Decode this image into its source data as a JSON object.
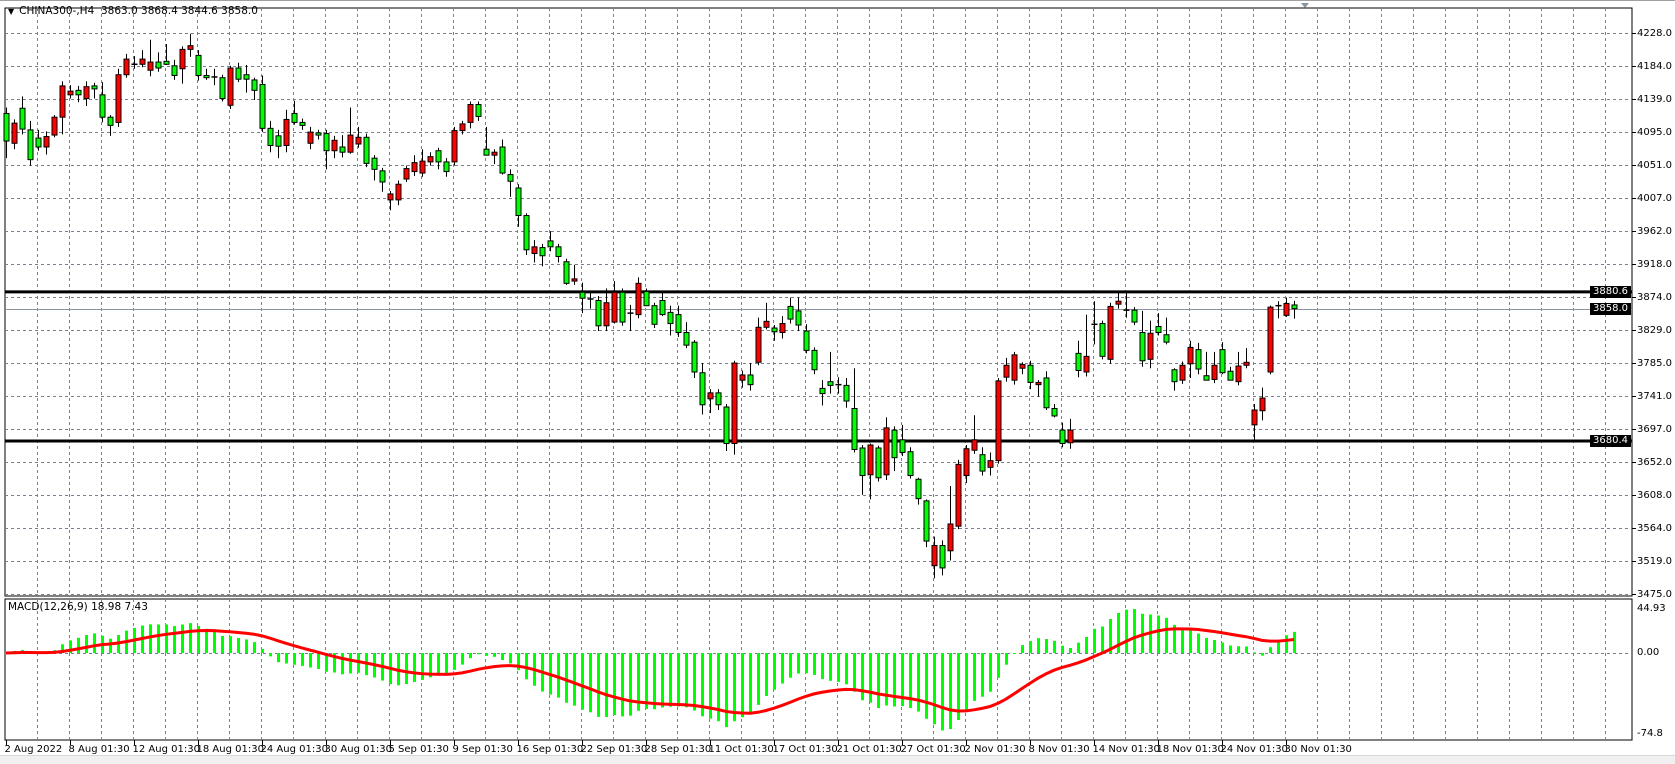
{
  "header": {
    "menu_icon": "triangle-down-icon",
    "symbol": "CHINA300-,H4",
    "ohlc": "3863.0 3868.4 3844.6 3858.0"
  },
  "macd_label": {
    "name": "MACD(12,26,9)",
    "values": "18.98 7.43"
  },
  "colors": {
    "bull_body": "#ff0000",
    "bear_body": "#00ff00",
    "candle_outline": "#000000",
    "grid": "#76808e",
    "macd_histogram": "#00ff00",
    "signal_line": "#ff0000",
    "level_line": "#000000",
    "bid_line": "#8a949e"
  },
  "chart_data": [
    {
      "type": "candlestick",
      "symbol": "CHINA300-",
      "timeframe": "H4",
      "ylim": [
        3475.0,
        4228.0
      ],
      "y_ticks": [
        "4228.0",
        "4184.0",
        "4139.0",
        "4095.0",
        "4051.0",
        "4007.0",
        "3962.0",
        "3918.0",
        "3874.0",
        "3829.0",
        "3785.0",
        "3741.0",
        "3697.0",
        "3652.0",
        "3608.0",
        "3564.0",
        "3519.0",
        "3475.0"
      ],
      "x_ticks": [
        "2 Aug 2022",
        "8 Aug 01:30",
        "12 Aug 01:30",
        "18 Aug 01:30",
        "24 Aug 01:30",
        "30 Aug 01:30",
        "5 Sep 01:30",
        "9 Sep 01:30",
        "16 Sep 01:30",
        "22 Sep 01:30",
        "28 Sep 01:30",
        "11 Oct 01:30",
        "17 Oct 01:30",
        "21 Oct 01:30",
        "27 Oct 01:30",
        "2 Nov 01:30",
        "8 Nov 01:30",
        "14 Nov 01:30",
        "18 Nov 01:30",
        "24 Nov 01:30",
        "30 Nov 01:30"
      ],
      "grid": true,
      "horizontal_lines": [
        {
          "price": 3880.6,
          "label": "3880.6",
          "style": "thick"
        },
        {
          "price": 3680.4,
          "label": "3680.4",
          "style": "thick"
        },
        {
          "price": 3858.0,
          "label": "3858.0",
          "style": "bid"
        }
      ],
      "candles_ohlc": [
        [
          4120,
          4128,
          4060,
          4083
        ],
        [
          4080,
          4112,
          4072,
          4107
        ],
        [
          4127,
          4143,
          4092,
          4099
        ],
        [
          4098,
          4110,
          4050,
          4058
        ],
        [
          4087,
          4098,
          4070,
          4075
        ],
        [
          4075,
          4096,
          4065,
          4089
        ],
        [
          4091,
          4118,
          4088,
          4115
        ],
        [
          4115,
          4163,
          4092,
          4157
        ],
        [
          4145,
          4158,
          4140,
          4150
        ],
        [
          4151,
          4157,
          4135,
          4145
        ],
        [
          4140,
          4163,
          4130,
          4156
        ],
        [
          4157,
          4161,
          4140,
          4153
        ],
        [
          4145,
          4162,
          4108,
          4115
        ],
        [
          4115,
          4118,
          4090,
          4104
        ],
        [
          4108,
          4180,
          4102,
          4172
        ],
        [
          4172,
          4200,
          4168,
          4193
        ],
        [
          4186,
          4197,
          4180,
          4186
        ],
        [
          4186,
          4205,
          4182,
          4193
        ],
        [
          4178,
          4219,
          4170,
          4189
        ],
        [
          4189,
          4202,
          4176,
          4181
        ],
        [
          4190,
          4213,
          4185,
          4186
        ],
        [
          4184,
          4192,
          4165,
          4171
        ],
        [
          4180,
          4210,
          4160,
          4206
        ],
        [
          4206,
          4227,
          4196,
          4211
        ],
        [
          4198,
          4205,
          4164,
          4171
        ],
        [
          4171,
          4180,
          4165,
          4168
        ],
        [
          4169,
          4180,
          4158,
          4169
        ],
        [
          4168,
          4172,
          4136,
          4140
        ],
        [
          4131,
          4184,
          4126,
          4181
        ],
        [
          4181,
          4188,
          4162,
          4166
        ],
        [
          4172,
          4185,
          4148,
          4166
        ],
        [
          4165,
          4168,
          4138,
          4151
        ],
        [
          4159,
          4171,
          4095,
          4100
        ],
        [
          4100,
          4110,
          4068,
          4077
        ],
        [
          4090,
          4098,
          4060,
          4076
        ],
        [
          4077,
          4125,
          4068,
          4112
        ],
        [
          4120,
          4137,
          4105,
          4108
        ],
        [
          4108,
          4113,
          4098,
          4104
        ],
        [
          4080,
          4102,
          4072,
          4095
        ],
        [
          4094,
          4098,
          4085,
          4091
        ],
        [
          4093,
          4098,
          4045,
          4070
        ],
        [
          4070,
          4090,
          4060,
          4084
        ],
        [
          4075,
          4091,
          4061,
          4068
        ],
        [
          4068,
          4128,
          4066,
          4091
        ],
        [
          4079,
          4102,
          4074,
          4088
        ],
        [
          4088,
          4093,
          4048,
          4053
        ],
        [
          4060,
          4064,
          4030,
          4045
        ],
        [
          4043,
          4047,
          4015,
          4028
        ],
        [
          4004,
          4016,
          3990,
          4012
        ],
        [
          4004,
          4030,
          3997,
          4025
        ],
        [
          4032,
          4050,
          4028,
          4046
        ],
        [
          4042,
          4064,
          4036,
          4054
        ],
        [
          4040,
          4072,
          4035,
          4056
        ],
        [
          4055,
          4068,
          4050,
          4062
        ],
        [
          4070,
          4074,
          4045,
          4055
        ],
        [
          4055,
          4060,
          4035,
          4042
        ],
        [
          4055,
          4102,
          4050,
          4097
        ],
        [
          4097,
          4110,
          4092,
          4106
        ],
        [
          4108,
          4136,
          4100,
          4132
        ],
        [
          4132,
          4136,
          4110,
          4116
        ],
        [
          4072,
          4102,
          4068,
          4064
        ],
        [
          4064,
          4072,
          4052,
          4068
        ],
        [
          4075,
          4085,
          4038,
          4040
        ],
        [
          4038,
          4045,
          4008,
          4029
        ],
        [
          4020,
          4025,
          3968,
          3983
        ],
        [
          3983,
          3986,
          3930,
          3937
        ],
        [
          3932,
          3950,
          3920,
          3941
        ],
        [
          3940,
          3945,
          3915,
          3929
        ],
        [
          3949,
          3962,
          3935,
          3941
        ],
        [
          3941,
          3945,
          3920,
          3928
        ],
        [
          3921,
          3925,
          3890,
          3892
        ],
        [
          3895,
          3917,
          3890,
          3898
        ],
        [
          3880,
          3893,
          3852,
          3872
        ],
        [
          3871,
          3880,
          3858,
          3871
        ],
        [
          3869,
          3875,
          3828,
          3835
        ],
        [
          3835,
          3885,
          3828,
          3866
        ],
        [
          3840,
          3895,
          3838,
          3880
        ],
        [
          3880,
          3885,
          3835,
          3840
        ],
        [
          3852,
          3863,
          3828,
          3852
        ],
        [
          3850,
          3900,
          3845,
          3892
        ],
        [
          3881,
          3885,
          3862,
          3862
        ],
        [
          3862,
          3866,
          3832,
          3837
        ],
        [
          3869,
          3881,
          3848,
          3850
        ],
        [
          3853,
          3862,
          3822,
          3838
        ],
        [
          3850,
          3862,
          3820,
          3826
        ],
        [
          3826,
          3840,
          3805,
          3809
        ],
        [
          3813,
          3816,
          3765,
          3773
        ],
        [
          3772,
          3785,
          3716,
          3729
        ],
        [
          3737,
          3750,
          3718,
          3745
        ],
        [
          3745,
          3750,
          3722,
          3729
        ],
        [
          3726,
          3730,
          3667,
          3677
        ],
        [
          3677,
          3788,
          3662,
          3785
        ],
        [
          3762,
          3775,
          3752,
          3769
        ],
        [
          3769,
          3785,
          3748,
          3756
        ],
        [
          3786,
          3846,
          3782,
          3833
        ],
        [
          3833,
          3866,
          3830,
          3841
        ],
        [
          3832,
          3836,
          3815,
          3827
        ],
        [
          3826,
          3848,
          3818,
          3838
        ],
        [
          3861,
          3873,
          3838,
          3844
        ],
        [
          3855,
          3873,
          3828,
          3836
        ],
        [
          3828,
          3837,
          3798,
          3802
        ],
        [
          3802,
          3806,
          3770,
          3776
        ],
        [
          3751,
          3762,
          3728,
          3744
        ],
        [
          3760,
          3800,
          3744,
          3755
        ],
        [
          3756,
          3766,
          3744,
          3756
        ],
        [
          3755,
          3765,
          3725,
          3734
        ],
        [
          3724,
          3778,
          3665,
          3669
        ],
        [
          3671,
          3675,
          3608,
          3634
        ],
        [
          3635,
          3677,
          3602,
          3675
        ],
        [
          3671,
          3674,
          3626,
          3631
        ],
        [
          3635,
          3712,
          3628,
          3698
        ],
        [
          3695,
          3700,
          3640,
          3658
        ],
        [
          3682,
          3702,
          3660,
          3665
        ],
        [
          3666,
          3672,
          3630,
          3634
        ],
        [
          3629,
          3631,
          3595,
          3603
        ],
        [
          3600,
          3602,
          3538,
          3546
        ],
        [
          3513,
          3552,
          3496,
          3540
        ],
        [
          3540,
          3547,
          3500,
          3510
        ],
        [
          3533,
          3620,
          3520,
          3569
        ],
        [
          3566,
          3655,
          3562,
          3649
        ],
        [
          3634,
          3675,
          3624,
          3670
        ],
        [
          3668,
          3715,
          3663,
          3682
        ],
        [
          3662,
          3672,
          3634,
          3640
        ],
        [
          3645,
          3665,
          3634,
          3654
        ],
        [
          3654,
          3765,
          3650,
          3761
        ],
        [
          3766,
          3792,
          3760,
          3782
        ],
        [
          3762,
          3800,
          3756,
          3796
        ],
        [
          3778,
          3786,
          3770,
          3783
        ],
        [
          3782,
          3788,
          3750,
          3759
        ],
        [
          3756,
          3762,
          3740,
          3759
        ],
        [
          3765,
          3774,
          3722,
          3725
        ],
        [
          3724,
          3730,
          3712,
          3714
        ],
        [
          3695,
          3705,
          3672,
          3677
        ],
        [
          3678,
          3710,
          3670,
          3695
        ],
        [
          3798,
          3815,
          3766,
          3775
        ],
        [
          3773,
          3850,
          3767,
          3794
        ],
        [
          3837,
          3868,
          3810,
          3837
        ],
        [
          3838,
          3842,
          3790,
          3794
        ],
        [
          3790,
          3866,
          3784,
          3861
        ],
        [
          3864,
          3880,
          3858,
          3868
        ],
        [
          3856,
          3880,
          3846,
          3856
        ],
        [
          3856,
          3860,
          3836,
          3840
        ],
        [
          3826,
          3855,
          3780,
          3788
        ],
        [
          3790,
          3842,
          3778,
          3825
        ],
        [
          3834,
          3852,
          3822,
          3826
        ],
        [
          3823,
          3846,
          3810,
          3813
        ],
        [
          3776,
          3778,
          3748,
          3760
        ],
        [
          3762,
          3787,
          3757,
          3782
        ],
        [
          3784,
          3815,
          3765,
          3806
        ],
        [
          3803,
          3812,
          3770,
          3777
        ],
        [
          3768,
          3800,
          3762,
          3762
        ],
        [
          3763,
          3800,
          3758,
          3782
        ],
        [
          3803,
          3813,
          3770,
          3772
        ],
        [
          3774,
          3780,
          3763,
          3762
        ],
        [
          3760,
          3800,
          3755,
          3781
        ],
        [
          3782,
          3805,
          3778,
          3786
        ],
        [
          3702,
          3730,
          3680,
          3722
        ],
        [
          3721,
          3752,
          3708,
          3738
        ],
        [
          3773,
          3862,
          3770,
          3860
        ],
        [
          3862,
          3868,
          3845,
          3860
        ],
        [
          3849,
          3873,
          3847,
          3865
        ],
        [
          3863,
          3868.4,
          3844.6,
          3858.0
        ]
      ]
    },
    {
      "type": "bar+line",
      "indicator": "MACD",
      "params": {
        "fast": 12,
        "slow": 26,
        "signal": 9
      },
      "ylim": [
        -74.8,
        44.93
      ],
      "y_ticks": [
        "44.93",
        "0.00",
        "-74.8"
      ],
      "current_main": 18.98,
      "current_signal": 7.43
    }
  ]
}
